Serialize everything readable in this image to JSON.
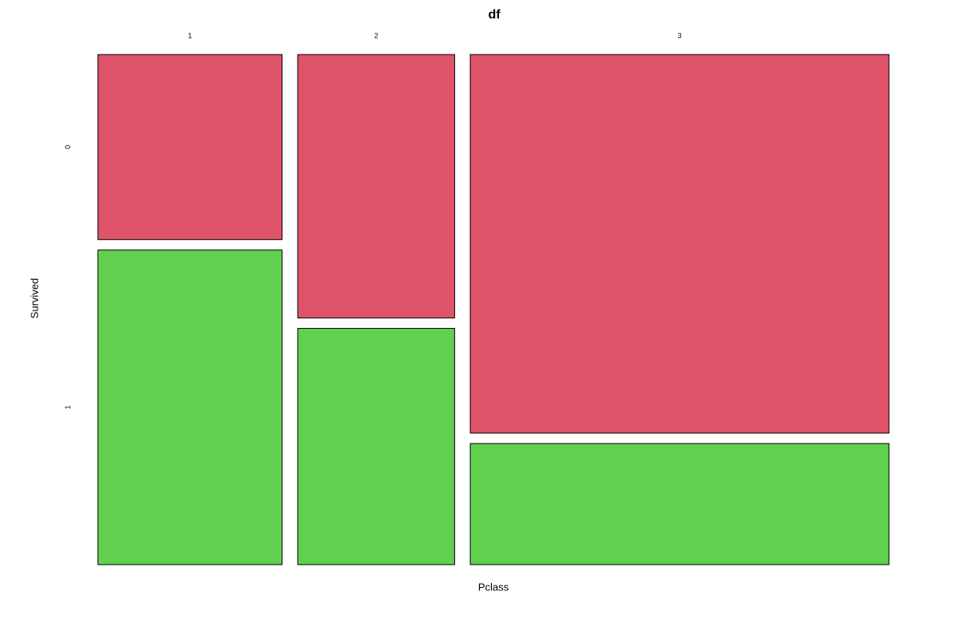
{
  "chart_data": {
    "type": "mosaic",
    "title": "df",
    "x_label": "Pclass",
    "y_label": "Survived",
    "categories": [
      "1",
      "2",
      "3"
    ],
    "series": [
      {
        "name": "0",
        "color": "#df536b",
        "values": [
          80,
          97,
          372
        ]
      },
      {
        "name": "1",
        "color": "#61d04f",
        "values": [
          136,
          87,
          119
        ]
      }
    ]
  }
}
